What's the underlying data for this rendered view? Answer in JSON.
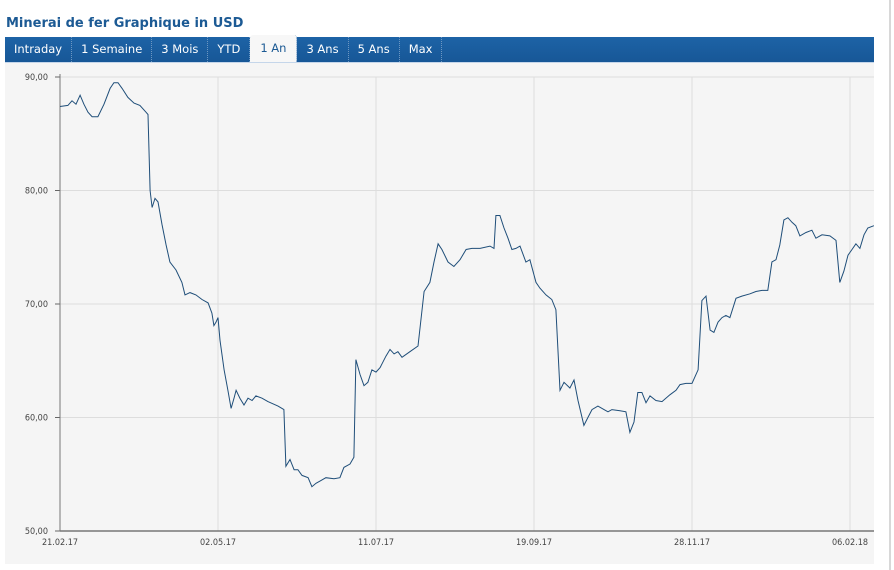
{
  "title": "Minerai de fer Graphique in USD",
  "tabs": [
    {
      "label": "Intraday"
    },
    {
      "label": "1 Semaine"
    },
    {
      "label": "3 Mois"
    },
    {
      "label": "YTD"
    },
    {
      "label": "1 An",
      "active": true
    },
    {
      "label": "3 Ans"
    },
    {
      "label": "5 Ans"
    },
    {
      "label": "Max"
    }
  ],
  "colors": {
    "tabbar": "#1b5e9e",
    "line": "#1f4e79",
    "grid": "#dddddd"
  },
  "chart_data": {
    "type": "line",
    "title": "Minerai de fer Graphique in USD",
    "xlabel": "",
    "ylabel": "USD",
    "ylim": [
      50,
      90
    ],
    "xlim_days": [
      0,
      361
    ],
    "yticks": [
      {
        "v": 90,
        "label": "90,00"
      },
      {
        "v": 80,
        "label": "80,00"
      },
      {
        "v": 70,
        "label": "70,00"
      },
      {
        "v": 60,
        "label": "60,00"
      },
      {
        "v": 50,
        "label": "50,00"
      }
    ],
    "xticks": [
      {
        "d": 0,
        "label": "21.02.17"
      },
      {
        "d": 70,
        "label": "02.05.17"
      },
      {
        "d": 140,
        "label": "11.07.17"
      },
      {
        "d": 210,
        "label": "19.09.17"
      },
      {
        "d": 280,
        "label": "28.11.17"
      },
      {
        "d": 350,
        "label": "06.02.18"
      }
    ],
    "grid": true,
    "series": [
      {
        "name": "Minerai de fer",
        "points_day_value": [
          [
            0,
            87.4
          ],
          [
            3.5,
            87.5
          ],
          [
            5.3,
            87.9
          ],
          [
            7.1,
            87.6
          ],
          [
            8.9,
            88.4
          ],
          [
            10.6,
            87.6
          ],
          [
            12.4,
            86.9
          ],
          [
            14.2,
            86.5
          ],
          [
            16.8,
            86.5
          ],
          [
            19.5,
            87.6
          ],
          [
            22.2,
            89.0
          ],
          [
            23.9,
            89.5
          ],
          [
            25.7,
            89.5
          ],
          [
            27.5,
            89.0
          ],
          [
            30.1,
            88.2
          ],
          [
            32.8,
            87.7
          ],
          [
            35.4,
            87.5
          ],
          [
            38.1,
            86.9
          ],
          [
            39,
            86.7
          ],
          [
            39.9,
            80.0
          ],
          [
            40.8,
            78.5
          ],
          [
            42.1,
            79.3
          ],
          [
            43.4,
            79.0
          ],
          [
            45.2,
            77.0
          ],
          [
            47,
            75.2
          ],
          [
            48.7,
            73.7
          ],
          [
            51.4,
            73.0
          ],
          [
            54,
            71.9
          ],
          [
            55.4,
            70.8
          ],
          [
            57.6,
            71.0
          ],
          [
            60.2,
            70.8
          ],
          [
            62.9,
            70.4
          ],
          [
            65.6,
            70.1
          ],
          [
            67.3,
            69.2
          ],
          [
            68.2,
            68.1
          ],
          [
            69.1,
            68.4
          ],
          [
            70,
            68.8
          ],
          [
            70.9,
            66.8
          ],
          [
            72.7,
            64.2
          ],
          [
            74.4,
            62.4
          ],
          [
            75.8,
            60.8
          ],
          [
            77.1,
            61.7
          ],
          [
            78,
            62.4
          ],
          [
            79.7,
            61.7
          ],
          [
            81.5,
            61.1
          ],
          [
            83.3,
            61.7
          ],
          [
            85.1,
            61.5
          ],
          [
            86.8,
            61.9
          ],
          [
            89.5,
            61.7
          ],
          [
            92.1,
            61.4
          ],
          [
            96.6,
            61.0
          ],
          [
            99.2,
            60.7
          ],
          [
            100.1,
            55.7
          ],
          [
            101.9,
            56.3
          ],
          [
            103.7,
            55.4
          ],
          [
            105.4,
            55.4
          ],
          [
            107.2,
            54.9
          ],
          [
            109.9,
            54.7
          ],
          [
            111.6,
            53.9
          ],
          [
            113.4,
            54.2
          ],
          [
            115.2,
            54.4
          ],
          [
            117.8,
            54.7
          ],
          [
            121.4,
            54.6
          ],
          [
            124,
            54.7
          ],
          [
            125.8,
            55.6
          ],
          [
            128.5,
            55.9
          ],
          [
            130.2,
            56.5
          ],
          [
            131.1,
            65.1
          ],
          [
            132.9,
            63.8
          ],
          [
            134.7,
            62.8
          ],
          [
            136.4,
            63.1
          ],
          [
            138.2,
            64.2
          ],
          [
            140,
            64.0
          ],
          [
            141.8,
            64.4
          ],
          [
            144.4,
            65.4
          ],
          [
            146.2,
            66.0
          ],
          [
            148,
            65.6
          ],
          [
            149.7,
            65.8
          ],
          [
            151.5,
            65.3
          ],
          [
            155,
            65.8
          ],
          [
            158.6,
            66.3
          ],
          [
            161.3,
            71.1
          ],
          [
            163.9,
            71.9
          ],
          [
            165.7,
            73.7
          ],
          [
            167.5,
            75.3
          ],
          [
            169.2,
            74.8
          ],
          [
            171.9,
            73.7
          ],
          [
            174.5,
            73.3
          ],
          [
            177.2,
            73.9
          ],
          [
            179.9,
            74.8
          ],
          [
            182.5,
            74.9
          ],
          [
            186.1,
            74.9
          ],
          [
            190.5,
            75.1
          ],
          [
            192.3,
            74.9
          ],
          [
            193.1,
            77.8
          ],
          [
            194.9,
            77.8
          ],
          [
            196.7,
            76.7
          ],
          [
            198.5,
            75.8
          ],
          [
            200.2,
            74.8
          ],
          [
            202,
            74.9
          ],
          [
            203.8,
            75.1
          ],
          [
            206.4,
            73.7
          ],
          [
            208.2,
            73.9
          ],
          [
            210.9,
            71.9
          ],
          [
            212.6,
            71.4
          ],
          [
            215.3,
            70.8
          ],
          [
            217.9,
            70.4
          ],
          [
            219.7,
            69.5
          ],
          [
            221.5,
            62.4
          ],
          [
            223.3,
            63.1
          ],
          [
            225.9,
            62.6
          ],
          [
            227.7,
            63.3
          ],
          [
            229.5,
            61.5
          ],
          [
            232.1,
            59.3
          ],
          [
            233.9,
            60.0
          ],
          [
            235.7,
            60.7
          ],
          [
            238.3,
            61.0
          ],
          [
            241,
            60.7
          ],
          [
            242.8,
            60.5
          ],
          [
            244.5,
            60.7
          ],
          [
            248.1,
            60.6
          ],
          [
            250.7,
            60.5
          ],
          [
            252.5,
            58.7
          ],
          [
            254.3,
            59.6
          ],
          [
            256,
            62.2
          ],
          [
            257.8,
            62.2
          ],
          [
            259.6,
            61.3
          ],
          [
            261.4,
            61.9
          ],
          [
            264,
            61.5
          ],
          [
            266.7,
            61.4
          ],
          [
            270.2,
            62.0
          ],
          [
            272.9,
            62.4
          ],
          [
            274.7,
            62.9
          ],
          [
            277.3,
            63.0
          ],
          [
            280,
            63.0
          ],
          [
            282.7,
            64.2
          ],
          [
            284.4,
            70.3
          ],
          [
            286.2,
            70.7
          ],
          [
            288,
            67.7
          ],
          [
            289.7,
            67.5
          ],
          [
            291.5,
            68.4
          ],
          [
            293.3,
            68.8
          ],
          [
            295,
            69.0
          ],
          [
            296.8,
            68.8
          ],
          [
            299.5,
            70.5
          ],
          [
            302.1,
            70.7
          ],
          [
            305.7,
            70.9
          ],
          [
            308.3,
            71.1
          ],
          [
            311,
            71.2
          ],
          [
            313.6,
            71.2
          ],
          [
            315.4,
            73.7
          ],
          [
            317.2,
            73.9
          ],
          [
            318.9,
            75.2
          ],
          [
            320.7,
            77.4
          ],
          [
            322.5,
            77.6
          ],
          [
            324.3,
            77.2
          ],
          [
            326,
            76.9
          ],
          [
            327.8,
            76.0
          ],
          [
            330.5,
            76.3
          ],
          [
            333.1,
            76.5
          ],
          [
            334.9,
            75.8
          ],
          [
            337.6,
            76.1
          ],
          [
            341.1,
            76.0
          ],
          [
            343.8,
            75.6
          ],
          [
            345.5,
            71.9
          ],
          [
            347.3,
            72.9
          ],
          [
            349.1,
            74.3
          ],
          [
            350.9,
            74.8
          ],
          [
            352.6,
            75.3
          ],
          [
            354.4,
            74.9
          ],
          [
            356.2,
            76.1
          ],
          [
            357.9,
            76.7
          ],
          [
            360.6,
            76.9
          ]
        ]
      }
    ]
  }
}
